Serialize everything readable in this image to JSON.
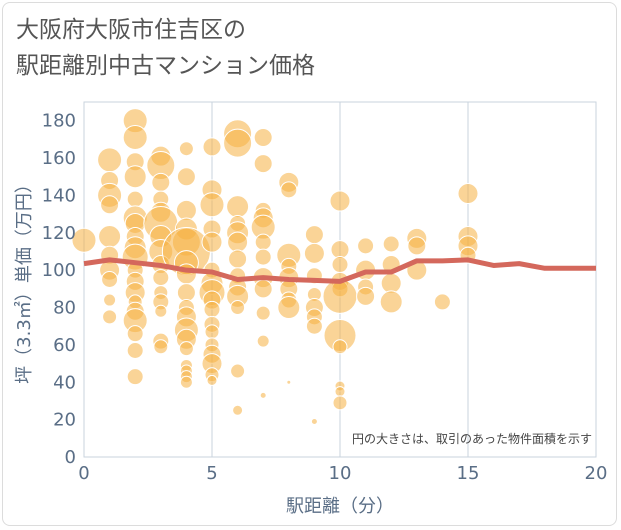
{
  "title_lines": [
    "大阪府大阪市住吉区の",
    "駅距離別中古マンション価格"
  ],
  "chart_data": {
    "type": "scatter",
    "title": "大阪府大阪市住吉区の駅距離別中古マンション価格",
    "xlabel": "駅距離（分）",
    "ylabel": "坪（3.3㎡）単価（万円）",
    "xlim": [
      0,
      20
    ],
    "ylim": [
      0,
      190
    ],
    "xticks": [
      0,
      5,
      10,
      15,
      20
    ],
    "yticks": [
      0,
      20,
      40,
      60,
      80,
      100,
      120,
      140,
      160,
      180
    ],
    "grid": true,
    "note": "円の大きさは、取引のあった物件面積を示す",
    "colors": {
      "bubble": "#f5b041",
      "line": "#d4685c",
      "grid": "#c9d3de",
      "text": "#5a6e86"
    },
    "series": [
      {
        "kind": "bubble",
        "points": [
          {
            "x": 0,
            "y": 116,
            "s": 12
          },
          {
            "x": 1,
            "y": 159,
            "s": 12
          },
          {
            "x": 1,
            "y": 148,
            "s": 9
          },
          {
            "x": 1,
            "y": 140,
            "s": 12
          },
          {
            "x": 1,
            "y": 135,
            "s": 9
          },
          {
            "x": 1,
            "y": 118,
            "s": 11
          },
          {
            "x": 1,
            "y": 108,
            "s": 9
          },
          {
            "x": 1,
            "y": 100,
            "s": 10
          },
          {
            "x": 1,
            "y": 95,
            "s": 8
          },
          {
            "x": 1,
            "y": 84,
            "s": 6
          },
          {
            "x": 1,
            "y": 75,
            "s": 7
          },
          {
            "x": 2,
            "y": 180,
            "s": 12
          },
          {
            "x": 2,
            "y": 171,
            "s": 12
          },
          {
            "x": 2,
            "y": 158,
            "s": 9
          },
          {
            "x": 2,
            "y": 150,
            "s": 11
          },
          {
            "x": 2,
            "y": 138,
            "s": 8
          },
          {
            "x": 2,
            "y": 128,
            "s": 12
          },
          {
            "x": 2,
            "y": 125,
            "s": 10
          },
          {
            "x": 2,
            "y": 118,
            "s": 9
          },
          {
            "x": 2,
            "y": 112,
            "s": 11
          },
          {
            "x": 2,
            "y": 107,
            "s": 13
          },
          {
            "x": 2,
            "y": 100,
            "s": 8
          },
          {
            "x": 2,
            "y": 94,
            "s": 9
          },
          {
            "x": 2,
            "y": 88,
            "s": 10
          },
          {
            "x": 2,
            "y": 83,
            "s": 7
          },
          {
            "x": 2,
            "y": 78,
            "s": 9
          },
          {
            "x": 2,
            "y": 73,
            "s": 12
          },
          {
            "x": 2,
            "y": 66,
            "s": 8
          },
          {
            "x": 2,
            "y": 57,
            "s": 8
          },
          {
            "x": 2,
            "y": 43,
            "s": 8
          },
          {
            "x": 3,
            "y": 161,
            "s": 10
          },
          {
            "x": 3,
            "y": 156,
            "s": 14
          },
          {
            "x": 3,
            "y": 147,
            "s": 9
          },
          {
            "x": 3,
            "y": 138,
            "s": 8
          },
          {
            "x": 3,
            "y": 131,
            "s": 10
          },
          {
            "x": 3,
            "y": 125,
            "s": 17
          },
          {
            "x": 3,
            "y": 118,
            "s": 11
          },
          {
            "x": 3,
            "y": 110,
            "s": 12
          },
          {
            "x": 3,
            "y": 103,
            "s": 9
          },
          {
            "x": 3,
            "y": 96,
            "s": 8
          },
          {
            "x": 3,
            "y": 88,
            "s": 7
          },
          {
            "x": 3,
            "y": 83,
            "s": 8
          },
          {
            "x": 3,
            "y": 78,
            "s": 6
          },
          {
            "x": 3,
            "y": 62,
            "s": 8
          },
          {
            "x": 3,
            "y": 59,
            "s": 7
          },
          {
            "x": 4,
            "y": 165,
            "s": 7
          },
          {
            "x": 4,
            "y": 150,
            "s": 9
          },
          {
            "x": 4,
            "y": 132,
            "s": 10
          },
          {
            "x": 4,
            "y": 122,
            "s": 11
          },
          {
            "x": 4,
            "y": 115,
            "s": 14
          },
          {
            "x": 4,
            "y": 110,
            "s": 24
          },
          {
            "x": 4,
            "y": 104,
            "s": 12
          },
          {
            "x": 4,
            "y": 98,
            "s": 10
          },
          {
            "x": 4,
            "y": 88,
            "s": 9
          },
          {
            "x": 4,
            "y": 80,
            "s": 8
          },
          {
            "x": 4,
            "y": 75,
            "s": 10
          },
          {
            "x": 4,
            "y": 68,
            "s": 12
          },
          {
            "x": 4,
            "y": 63,
            "s": 10
          },
          {
            "x": 4,
            "y": 58,
            "s": 7
          },
          {
            "x": 4,
            "y": 49,
            "s": 6
          },
          {
            "x": 4,
            "y": 46,
            "s": 6
          },
          {
            "x": 4,
            "y": 43,
            "s": 6
          },
          {
            "x": 4,
            "y": 40,
            "s": 6
          },
          {
            "x": 5,
            "y": 166,
            "s": 9
          },
          {
            "x": 5,
            "y": 143,
            "s": 10
          },
          {
            "x": 5,
            "y": 135,
            "s": 12
          },
          {
            "x": 5,
            "y": 122,
            "s": 9
          },
          {
            "x": 5,
            "y": 115,
            "s": 10
          },
          {
            "x": 5,
            "y": 100,
            "s": 8
          },
          {
            "x": 5,
            "y": 93,
            "s": 11
          },
          {
            "x": 5,
            "y": 88,
            "s": 13
          },
          {
            "x": 5,
            "y": 84,
            "s": 9
          },
          {
            "x": 5,
            "y": 79,
            "s": 8
          },
          {
            "x": 5,
            "y": 71,
            "s": 8
          },
          {
            "x": 5,
            "y": 67,
            "s": 7
          },
          {
            "x": 5,
            "y": 60,
            "s": 7
          },
          {
            "x": 5,
            "y": 55,
            "s": 9
          },
          {
            "x": 5,
            "y": 50,
            "s": 10
          },
          {
            "x": 5,
            "y": 44,
            "s": 7
          },
          {
            "x": 5,
            "y": 41,
            "s": 5
          },
          {
            "x": 6,
            "y": 173,
            "s": 14
          },
          {
            "x": 6,
            "y": 168,
            "s": 14
          },
          {
            "x": 6,
            "y": 134,
            "s": 11
          },
          {
            "x": 6,
            "y": 125,
            "s": 8
          },
          {
            "x": 6,
            "y": 120,
            "s": 11
          },
          {
            "x": 6,
            "y": 115,
            "s": 10
          },
          {
            "x": 6,
            "y": 106,
            "s": 9
          },
          {
            "x": 6,
            "y": 97,
            "s": 8
          },
          {
            "x": 6,
            "y": 91,
            "s": 9
          },
          {
            "x": 6,
            "y": 86,
            "s": 11
          },
          {
            "x": 6,
            "y": 80,
            "s": 7
          },
          {
            "x": 6,
            "y": 46,
            "s": 7
          },
          {
            "x": 6,
            "y": 25,
            "s": 5
          },
          {
            "x": 7,
            "y": 171,
            "s": 9
          },
          {
            "x": 7,
            "y": 157,
            "s": 9
          },
          {
            "x": 7,
            "y": 132,
            "s": 8
          },
          {
            "x": 7,
            "y": 128,
            "s": 10
          },
          {
            "x": 7,
            "y": 123,
            "s": 12
          },
          {
            "x": 7,
            "y": 115,
            "s": 8
          },
          {
            "x": 7,
            "y": 107,
            "s": 8
          },
          {
            "x": 7,
            "y": 96,
            "s": 10
          },
          {
            "x": 7,
            "y": 90,
            "s": 9
          },
          {
            "x": 7,
            "y": 77,
            "s": 7
          },
          {
            "x": 7,
            "y": 62,
            "s": 6
          },
          {
            "x": 7,
            "y": 33,
            "s": 3
          },
          {
            "x": 8,
            "y": 147,
            "s": 10
          },
          {
            "x": 8,
            "y": 143,
            "s": 8
          },
          {
            "x": 8,
            "y": 108,
            "s": 12
          },
          {
            "x": 8,
            "y": 102,
            "s": 8
          },
          {
            "x": 8,
            "y": 96,
            "s": 10
          },
          {
            "x": 8,
            "y": 90,
            "s": 9
          },
          {
            "x": 8,
            "y": 84,
            "s": 8
          },
          {
            "x": 8,
            "y": 80,
            "s": 11
          },
          {
            "x": 8,
            "y": 40,
            "s": 2
          },
          {
            "x": 9,
            "y": 119,
            "s": 9
          },
          {
            "x": 9,
            "y": 109,
            "s": 10
          },
          {
            "x": 9,
            "y": 97,
            "s": 8
          },
          {
            "x": 9,
            "y": 87,
            "s": 7
          },
          {
            "x": 9,
            "y": 80,
            "s": 9
          },
          {
            "x": 9,
            "y": 75,
            "s": 8
          },
          {
            "x": 9,
            "y": 70,
            "s": 8
          },
          {
            "x": 9,
            "y": 19,
            "s": 3
          },
          {
            "x": 10,
            "y": 137,
            "s": 10
          },
          {
            "x": 10,
            "y": 111,
            "s": 9
          },
          {
            "x": 10,
            "y": 103,
            "s": 8
          },
          {
            "x": 10,
            "y": 94,
            "s": 9
          },
          {
            "x": 10,
            "y": 90,
            "s": 8
          },
          {
            "x": 10,
            "y": 86,
            "s": 17
          },
          {
            "x": 10,
            "y": 65,
            "s": 16
          },
          {
            "x": 10,
            "y": 59,
            "s": 7
          },
          {
            "x": 10,
            "y": 38,
            "s": 5
          },
          {
            "x": 10,
            "y": 35,
            "s": 5
          },
          {
            "x": 10,
            "y": 29,
            "s": 7
          },
          {
            "x": 11,
            "y": 113,
            "s": 8
          },
          {
            "x": 11,
            "y": 100,
            "s": 10
          },
          {
            "x": 11,
            "y": 91,
            "s": 8
          },
          {
            "x": 11,
            "y": 86,
            "s": 9
          },
          {
            "x": 12,
            "y": 114,
            "s": 8
          },
          {
            "x": 12,
            "y": 103,
            "s": 9
          },
          {
            "x": 12,
            "y": 93,
            "s": 10
          },
          {
            "x": 12,
            "y": 83,
            "s": 11
          },
          {
            "x": 13,
            "y": 117,
            "s": 10
          },
          {
            "x": 13,
            "y": 113,
            "s": 9
          },
          {
            "x": 13,
            "y": 100,
            "s": 10
          },
          {
            "x": 14,
            "y": 83,
            "s": 8
          },
          {
            "x": 15,
            "y": 141,
            "s": 10
          },
          {
            "x": 15,
            "y": 118,
            "s": 10
          },
          {
            "x": 15,
            "y": 113,
            "s": 10
          },
          {
            "x": 15,
            "y": 108,
            "s": 8
          }
        ]
      },
      {
        "kind": "line",
        "x": [
          0,
          1,
          2,
          3,
          4,
          5,
          6,
          7,
          8,
          9,
          10,
          11,
          12,
          13,
          14,
          15,
          16,
          17,
          18,
          19,
          20
        ],
        "values": [
          103.5,
          105.5,
          104,
          102.5,
          100,
          99,
          95,
          96,
          95,
          94.5,
          94,
          99,
          99,
          105,
          105,
          105.5,
          102.5,
          103.5,
          101,
          101,
          101
        ]
      }
    ]
  }
}
